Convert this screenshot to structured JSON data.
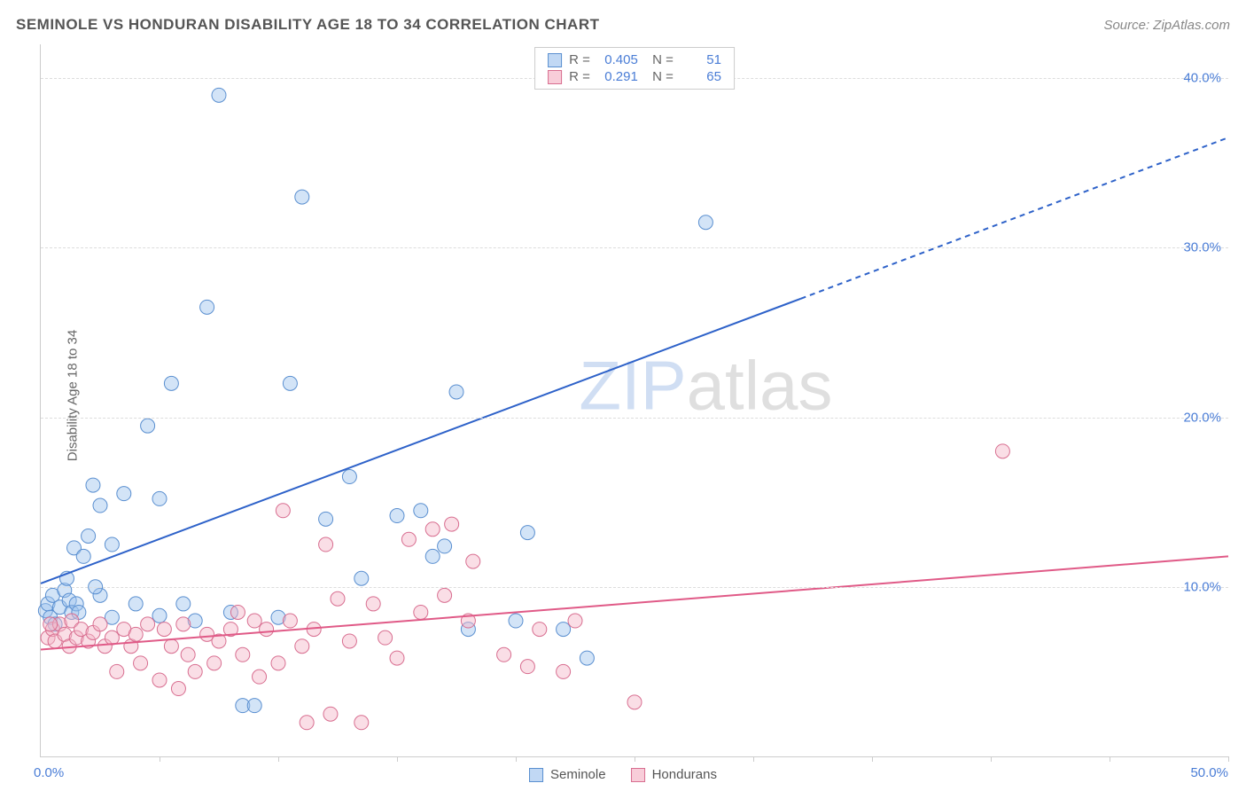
{
  "title": "SEMINOLE VS HONDURAN DISABILITY AGE 18 TO 34 CORRELATION CHART",
  "source": "Source: ZipAtlas.com",
  "y_axis_label": "Disability Age 18 to 34",
  "watermark_bold": "ZIP",
  "watermark_rest": "atlas",
  "chart": {
    "type": "scatter",
    "xlim": [
      0,
      50
    ],
    "ylim": [
      0,
      42
    ],
    "x_ticks": [
      0,
      5,
      10,
      15,
      20,
      25,
      30,
      35,
      40,
      45,
      50
    ],
    "y_grid": [
      10,
      20,
      30,
      40
    ],
    "y_tick_labels": [
      "10.0%",
      "20.0%",
      "30.0%",
      "40.0%"
    ],
    "x_min_label": "0.0%",
    "x_max_label": "50.0%",
    "background_color": "#ffffff",
    "grid_color": "#dddddd",
    "axis_color": "#cccccc",
    "marker_radius": 8,
    "marker_opacity": 0.45,
    "series": [
      {
        "name": "Seminole",
        "fill": "#9ec3ed",
        "stroke": "#5a8fd0",
        "R": "0.405",
        "N": "51",
        "trend": {
          "x1": 0,
          "y1": 10.2,
          "x2": 32,
          "y2": 27.0,
          "x2_ext": 50,
          "y2_ext": 36.5,
          "color": "#2e62c9",
          "width": 2
        },
        "points": [
          [
            0.2,
            8.6
          ],
          [
            0.3,
            9.0
          ],
          [
            0.4,
            8.2
          ],
          [
            0.5,
            9.5
          ],
          [
            0.6,
            7.8
          ],
          [
            0.8,
            8.8
          ],
          [
            1.0,
            9.8
          ],
          [
            1.1,
            10.5
          ],
          [
            1.2,
            9.2
          ],
          [
            1.3,
            8.5
          ],
          [
            1.4,
            12.3
          ],
          [
            1.5,
            9.0
          ],
          [
            1.8,
            11.8
          ],
          [
            2.0,
            13.0
          ],
          [
            2.2,
            16.0
          ],
          [
            2.5,
            14.8
          ],
          [
            2.5,
            9.5
          ],
          [
            3.0,
            12.5
          ],
          [
            3.0,
            8.2
          ],
          [
            3.5,
            15.5
          ],
          [
            4.0,
            9.0
          ],
          [
            4.5,
            19.5
          ],
          [
            5.0,
            15.2
          ],
          [
            5.0,
            8.3
          ],
          [
            5.5,
            22.0
          ],
          [
            6.0,
            9.0
          ],
          [
            6.5,
            8.0
          ],
          [
            7.0,
            26.5
          ],
          [
            7.5,
            39.0
          ],
          [
            8.0,
            8.5
          ],
          [
            8.5,
            3.0
          ],
          [
            9.0,
            3.0
          ],
          [
            10.0,
            8.2
          ],
          [
            10.5,
            22.0
          ],
          [
            11.0,
            33.0
          ],
          [
            12.0,
            14.0
          ],
          [
            13.0,
            16.5
          ],
          [
            13.5,
            10.5
          ],
          [
            15.0,
            14.2
          ],
          [
            16.0,
            14.5
          ],
          [
            16.5,
            11.8
          ],
          [
            17.0,
            12.4
          ],
          [
            17.5,
            21.5
          ],
          [
            18.0,
            7.5
          ],
          [
            20.0,
            8.0
          ],
          [
            20.5,
            13.2
          ],
          [
            22.0,
            7.5
          ],
          [
            23.0,
            5.8
          ],
          [
            28.0,
            31.5
          ],
          [
            1.6,
            8.5
          ],
          [
            2.3,
            10.0
          ]
        ]
      },
      {
        "name": "Hondurans",
        "fill": "#f4b6c8",
        "stroke": "#d86e90",
        "R": "0.291",
        "N": "65",
        "trend": {
          "x1": 0,
          "y1": 6.3,
          "x2": 50,
          "y2": 11.8,
          "color": "#e05a87",
          "width": 2
        },
        "points": [
          [
            0.3,
            7.0
          ],
          [
            0.5,
            7.5
          ],
          [
            0.6,
            6.8
          ],
          [
            0.8,
            7.8
          ],
          [
            1.0,
            7.2
          ],
          [
            1.2,
            6.5
          ],
          [
            1.3,
            8.0
          ],
          [
            1.5,
            7.0
          ],
          [
            1.7,
            7.5
          ],
          [
            2.0,
            6.8
          ],
          [
            2.2,
            7.3
          ],
          [
            2.5,
            7.8
          ],
          [
            2.7,
            6.5
          ],
          [
            3.0,
            7.0
          ],
          [
            3.2,
            5.0
          ],
          [
            3.5,
            7.5
          ],
          [
            3.8,
            6.5
          ],
          [
            4.0,
            7.2
          ],
          [
            4.2,
            5.5
          ],
          [
            4.5,
            7.8
          ],
          [
            5.0,
            4.5
          ],
          [
            5.2,
            7.5
          ],
          [
            5.5,
            6.5
          ],
          [
            5.8,
            4.0
          ],
          [
            6.0,
            7.8
          ],
          [
            6.2,
            6.0
          ],
          [
            6.5,
            5.0
          ],
          [
            7.0,
            7.2
          ],
          [
            7.3,
            5.5
          ],
          [
            7.5,
            6.8
          ],
          [
            8.0,
            7.5
          ],
          [
            8.3,
            8.5
          ],
          [
            8.5,
            6.0
          ],
          [
            9.0,
            8.0
          ],
          [
            9.2,
            4.7
          ],
          [
            9.5,
            7.5
          ],
          [
            10.0,
            5.5
          ],
          [
            10.2,
            14.5
          ],
          [
            10.5,
            8.0
          ],
          [
            11.0,
            6.5
          ],
          [
            11.2,
            2.0
          ],
          [
            11.5,
            7.5
          ],
          [
            12.0,
            12.5
          ],
          [
            12.2,
            2.5
          ],
          [
            12.5,
            9.3
          ],
          [
            13.0,
            6.8
          ],
          [
            13.5,
            2.0
          ],
          [
            14.0,
            9.0
          ],
          [
            14.5,
            7.0
          ],
          [
            15.0,
            5.8
          ],
          [
            15.5,
            12.8
          ],
          [
            16.0,
            8.5
          ],
          [
            16.5,
            13.4
          ],
          [
            17.0,
            9.5
          ],
          [
            17.3,
            13.7
          ],
          [
            18.0,
            8.0
          ],
          [
            18.2,
            11.5
          ],
          [
            19.5,
            6.0
          ],
          [
            20.5,
            5.3
          ],
          [
            21.0,
            7.5
          ],
          [
            22.0,
            5.0
          ],
          [
            22.5,
            8.0
          ],
          [
            25.0,
            3.2
          ],
          [
            40.5,
            18.0
          ],
          [
            0.4,
            7.8
          ]
        ]
      }
    ]
  },
  "legend_bottom": [
    {
      "label": "Seminole",
      "color_key": 0
    },
    {
      "label": "Hondurans",
      "color_key": 1
    }
  ]
}
